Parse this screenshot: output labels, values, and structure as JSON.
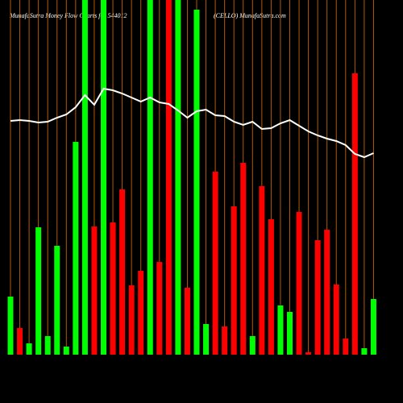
{
  "chart_data": {
    "type": "bar",
    "title": "MunafaSutra  Money Flow  Charts for 544012",
    "subtitle": "(CELLO) MunafaSutra.com",
    "ylim": [
      0,
      440
    ],
    "series": [
      {
        "name": "Money flow",
        "colors": [
          "#00ff00",
          "#ff0000",
          "#00ff00",
          "#00ff00",
          "#00ff00",
          "#00ff00",
          "#00ff00",
          "#00ff00",
          "#00ff00",
          "#ff0000",
          "#00ff00",
          "#ff0000",
          "#ff0000",
          "#ff0000",
          "#ff0000",
          "#00ff00",
          "#ff0000",
          "#ff0000",
          "#00ff00",
          "#ff0000",
          "#00ff00",
          "#00ff00",
          "#ff0000",
          "#ff0000",
          "#ff0000",
          "#ff0000",
          "#00ff00",
          "#ff0000",
          "#ff0000",
          "#00ff00",
          "#00ff00",
          "#ff0000",
          "#ff0000",
          "#ff0000",
          "#ff0000",
          "#ff0000",
          "#ff0000",
          "#ff0000",
          "#00ff00",
          "#00ff00"
        ],
        "values": [
          72,
          33,
          14,
          158,
          23,
          135,
          10,
          264,
          440,
          159,
          440,
          164,
          205,
          86,
          104,
          440,
          115,
          440,
          440,
          83,
          428,
          38,
          227,
          35,
          184,
          238,
          23,
          209,
          168,
          61,
          53,
          177,
          3,
          142,
          155,
          87,
          20,
          349,
          8,
          69
        ]
      },
      {
        "name": "Price",
        "type": "line",
        "color": "#ffffff",
        "values": [
          290,
          291,
          290,
          288,
          289,
          294,
          298,
          307,
          322,
          310,
          330,
          328,
          324,
          319,
          314,
          319,
          313,
          311,
          303,
          294,
          302,
          304,
          297,
          296,
          289,
          285,
          289,
          280,
          281,
          287,
          291,
          284,
          277,
          272,
          268,
          265,
          260,
          249,
          245,
          250
        ]
      }
    ],
    "gridline_color": "#b35a00"
  }
}
